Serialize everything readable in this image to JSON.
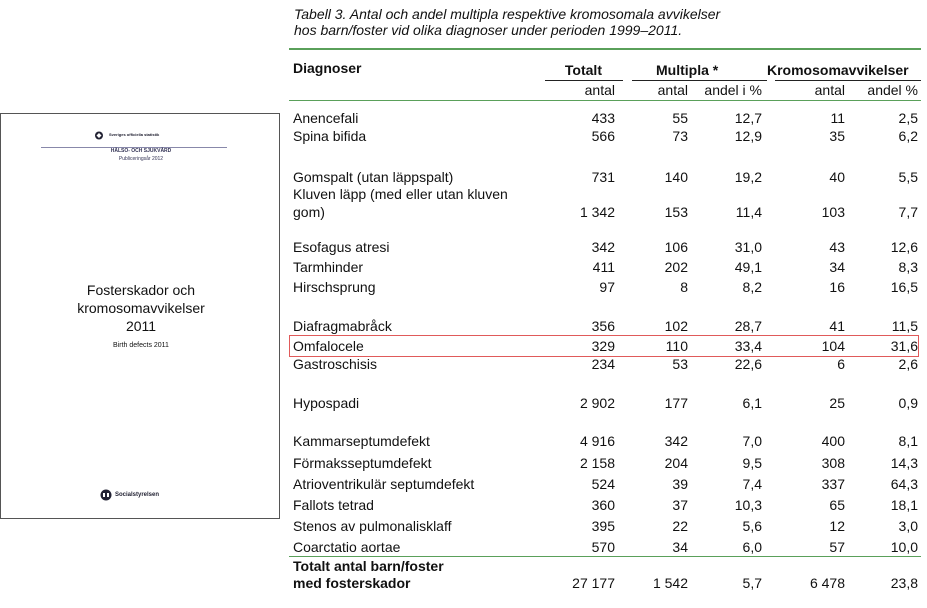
{
  "cover": {
    "logo_text": "Sveriges officiella statistik",
    "dept": "HÄLSO- OCH SJUKVÅRD",
    "year_line": "Publiceringsår 2012",
    "title_lines": [
      "Fosterskador och",
      "kromosomavvikelser",
      "2011"
    ],
    "subtitle": "Birth defects 2011",
    "publisher": "Socialstyrelsen"
  },
  "caption": {
    "line1": "Tabell 3. Antal och andel multipla respektive kromosomala avvikelser",
    "line2": "hos barn/foster vid olika diagnoser under perioden 1999–2011."
  },
  "table": {
    "headers": {
      "diagnoser": "Diagnoser",
      "totalt": "Totalt",
      "multipla": "Multipla *",
      "kromosom": "Kromosomavvikelser"
    },
    "subheaders": {
      "antal1": "antal",
      "antal2": "antal",
      "andel1": "andel i %",
      "antal3": "antal",
      "andel2": "andel %"
    },
    "rows": [
      {
        "diag": "Anencefali",
        "totalt": "433",
        "m_antal": "55",
        "m_andel": "12,7",
        "k_antal": "11",
        "k_andel": "2,5"
      },
      {
        "diag": "Spina bifida",
        "totalt": "566",
        "m_antal": "73",
        "m_andel": "12,9",
        "k_antal": "35",
        "k_andel": "6,2"
      },
      {
        "diag": "Gomspalt (utan läppspalt)",
        "totalt": "731",
        "m_antal": "140",
        "m_andel": "19,2",
        "k_antal": "40",
        "k_andel": "5,5"
      },
      {
        "diag": "Kluven läpp (med eller utan kluven",
        "diag2": "gom)",
        "totalt": "1 342",
        "m_antal": "153",
        "m_andel": "11,4",
        "k_antal": "103",
        "k_andel": "7,7"
      },
      {
        "diag": "Esofagus atresi",
        "totalt": "342",
        "m_antal": "106",
        "m_andel": "31,0",
        "k_antal": "43",
        "k_andel": "12,6"
      },
      {
        "diag": "Tarmhinder",
        "totalt": "411",
        "m_antal": "202",
        "m_andel": "49,1",
        "k_antal": "34",
        "k_andel": "8,3"
      },
      {
        "diag": "Hirschsprung",
        "totalt": "97",
        "m_antal": "8",
        "m_andel": "8,2",
        "k_antal": "16",
        "k_andel": "16,5"
      },
      {
        "diag": "Diafragmabråck",
        "totalt": "356",
        "m_antal": "102",
        "m_andel": "28,7",
        "k_antal": "41",
        "k_andel": "11,5"
      },
      {
        "diag": "Omfalocele",
        "totalt": "329",
        "m_antal": "110",
        "m_andel": "33,4",
        "k_antal": "104",
        "k_andel": "31,6"
      },
      {
        "diag": "Gastroschisis",
        "totalt": "234",
        "m_antal": "53",
        "m_andel": "22,6",
        "k_antal": "6",
        "k_andel": "2,6"
      },
      {
        "diag": "Hypospadi",
        "totalt": "2 902",
        "m_antal": "177",
        "m_andel": "6,1",
        "k_antal": "25",
        "k_andel": "0,9"
      },
      {
        "diag": "Kammarseptumdefekt",
        "totalt": "4 916",
        "m_antal": "342",
        "m_andel": "7,0",
        "k_antal": "400",
        "k_andel": "8,1"
      },
      {
        "diag": "Förmaksseptumdefekt",
        "totalt": "2 158",
        "m_antal": "204",
        "m_andel": "9,5",
        "k_antal": "308",
        "k_andel": "14,3"
      },
      {
        "diag": "Atrioventrikulär septumdefekt",
        "totalt": "524",
        "m_antal": "39",
        "m_andel": "7,4",
        "k_antal": "337",
        "k_andel": "64,3"
      },
      {
        "diag": "Fallots tetrad",
        "totalt": "360",
        "m_antal": "37",
        "m_andel": "10,3",
        "k_antal": "65",
        "k_andel": "18,1"
      },
      {
        "diag": "Stenos av pulmonalisklaff",
        "totalt": "395",
        "m_antal": "22",
        "m_andel": "5,6",
        "k_antal": "12",
        "k_andel": "3,0"
      },
      {
        "diag": "Coarctatio aortae",
        "totalt": "570",
        "m_antal": "34",
        "m_andel": "6,0",
        "k_antal": "57",
        "k_andel": "10,0"
      }
    ],
    "total": {
      "label1": "Totalt antal barn/foster",
      "label2": "med fosterskador",
      "totalt": "27 177",
      "m_antal": "1 542",
      "m_andel": "5,7",
      "k_antal": "6 478",
      "k_andel": "23,8"
    }
  },
  "colors": {
    "rule": "#5aa05a",
    "highlight": "#e05a5a"
  }
}
